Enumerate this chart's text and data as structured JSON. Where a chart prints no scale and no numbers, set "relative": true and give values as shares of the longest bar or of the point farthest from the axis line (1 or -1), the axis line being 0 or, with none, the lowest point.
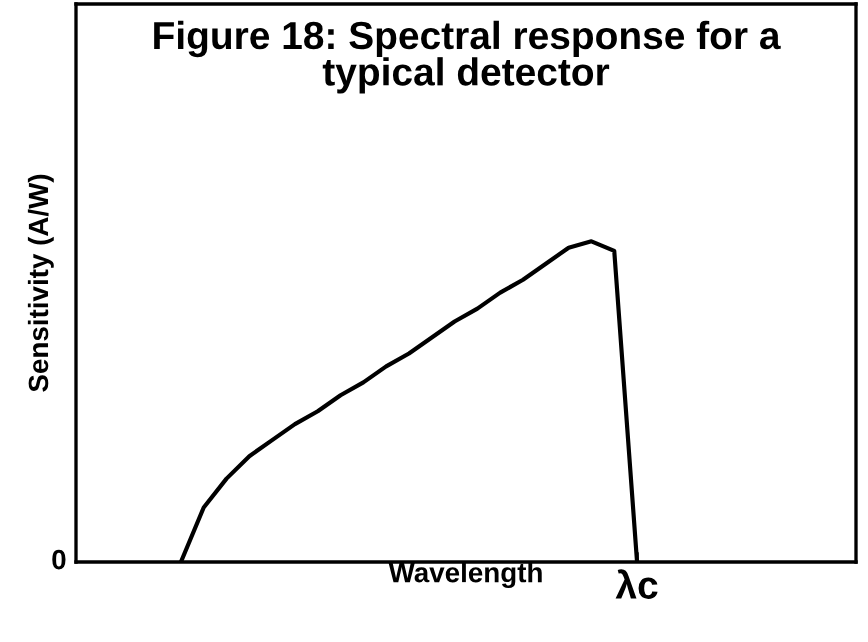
{
  "chart_data": {
    "type": "line",
    "title": "Figure 18: Spectral response for a\ntypical detector",
    "xlabel": "Wavelength",
    "ylabel": "Sensitivity (A/W)",
    "relative": true,
    "categories": [
      null,
      null,
      null,
      null,
      null,
      null,
      null,
      null,
      null,
      null,
      null,
      null,
      null,
      null,
      null,
      null,
      null,
      null,
      null,
      null,
      null,
      null,
      null,
      null,
      null,
      null,
      null,
      null,
      null,
      null,
      null,
      null,
      null,
      null
    ],
    "series": [
      {
        "color": "#000000",
        "values": [
          null,
          null,
          null,
          null,
          0,
          0.17,
          0.26,
          0.33,
          0.38,
          0.43,
          0.47,
          0.52,
          0.56,
          0.61,
          0.65,
          0.7,
          0.75,
          0.79,
          0.84,
          0.88,
          0.93,
          0.98,
          1.0,
          0.97,
          0,
          null,
          null,
          null,
          null,
          null,
          null,
          null,
          null,
          null
        ]
      }
    ],
    "annotations": [
      "0",
      "λc"
    ],
    "legend": false,
    "marker": "none",
    "line_style": "solid"
  }
}
